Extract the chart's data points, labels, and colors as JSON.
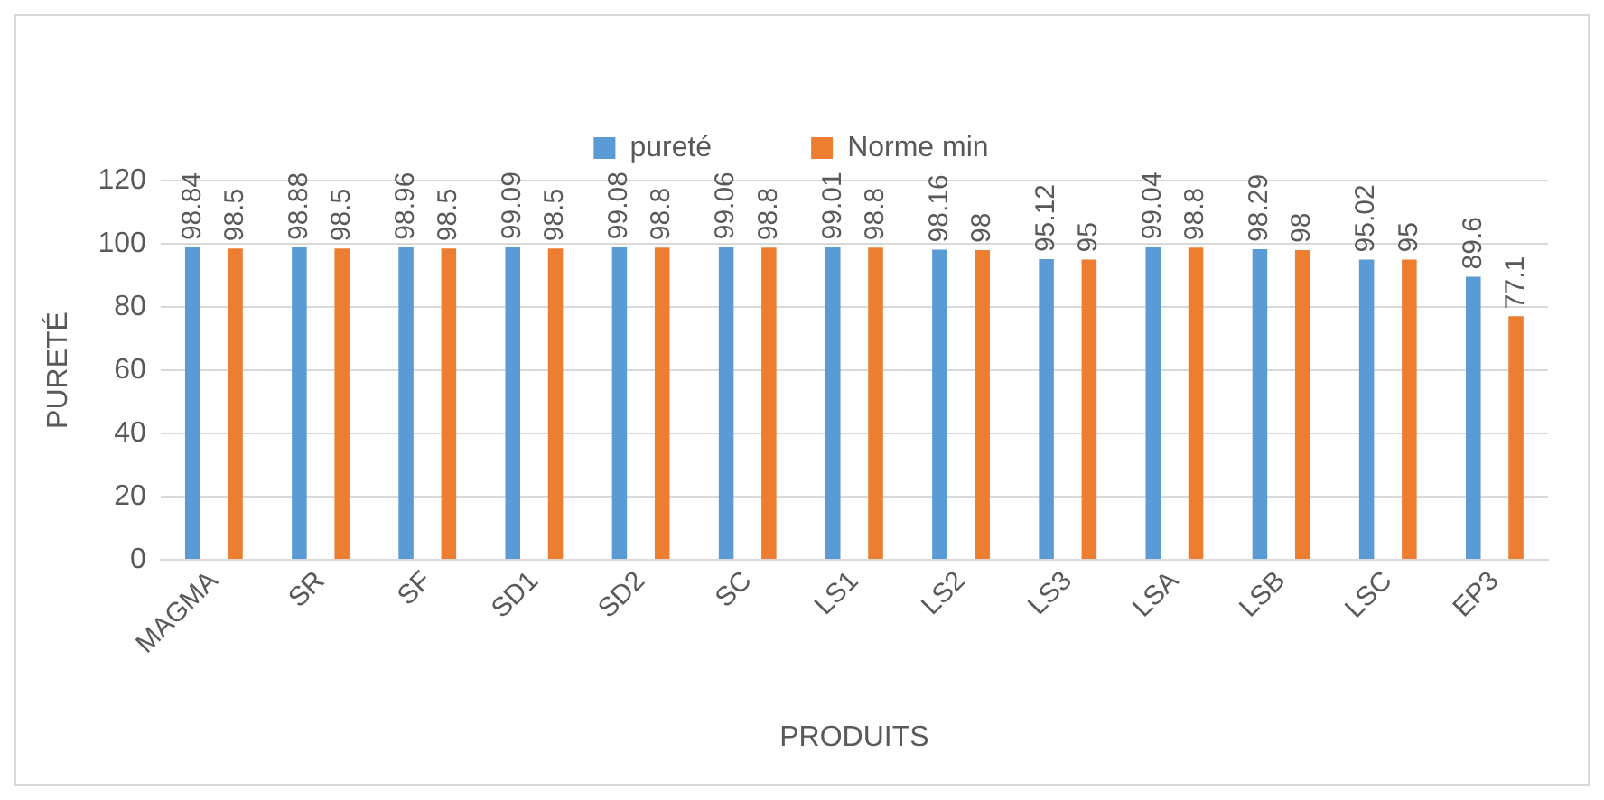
{
  "chart_data": {
    "type": "bar",
    "xlabel": "PRODUITS",
    "ylabel": "PURETÉ",
    "categories": [
      "MAGMA",
      "SR",
      "SF",
      "SD1",
      "SD2",
      "SC",
      "LS1",
      "LS2",
      "LS3",
      "LSA",
      "LSB",
      "LSC",
      "EP3"
    ],
    "series": [
      {
        "name": "pureté",
        "color": "#5b9bd5",
        "values": [
          98.84,
          98.88,
          98.96,
          99.09,
          99.08,
          99.06,
          99.01,
          98.16,
          95.12,
          99.04,
          98.29,
          95.02,
          89.6
        ]
      },
      {
        "name": "Norme min",
        "color": "#ed7d31",
        "values": [
          98.5,
          98.5,
          98.5,
          98.5,
          98.8,
          98.8,
          98.8,
          98,
          95,
          98.8,
          98,
          95,
          77.1
        ]
      }
    ],
    "ylim": [
      0,
      120
    ],
    "yticks": [
      0,
      20,
      40,
      60,
      80,
      100,
      120
    ],
    "grid": "y",
    "legend": "top",
    "data_labels": true
  }
}
